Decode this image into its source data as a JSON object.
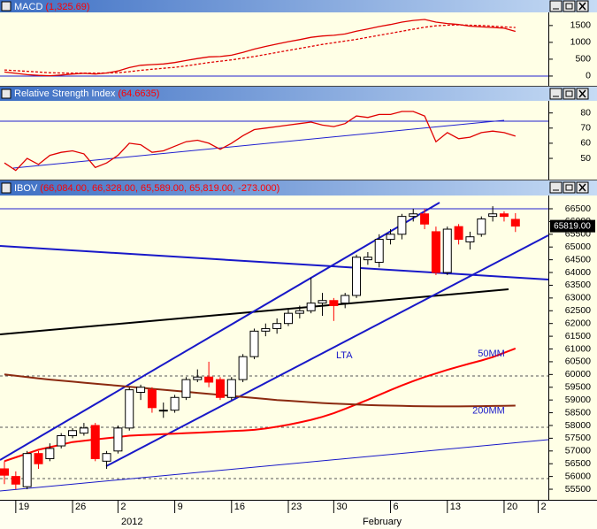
{
  "chart_data": [
    {
      "type": "line",
      "title": "MACD",
      "subtitle": "(1,325.69)",
      "ylim": [
        -290,
        1890
      ],
      "yticks": [
        0,
        500,
        1000,
        1500
      ],
      "series": [
        {
          "color": "#e00000",
          "dash": false,
          "values": [
            120,
            80,
            40,
            20,
            10,
            30,
            60,
            80,
            60,
            90,
            150,
            250,
            320,
            340,
            360,
            400,
            460,
            520,
            570,
            580,
            620,
            700,
            800,
            880,
            950,
            1020,
            1080,
            1150,
            1190,
            1210,
            1250,
            1330,
            1400,
            1470,
            1530,
            1600,
            1650,
            1680,
            1600,
            1560,
            1530,
            1480,
            1460,
            1440,
            1420,
            1325.69,
            null,
            null
          ]
        },
        {
          "color": "#e00000",
          "dash": true,
          "values": [
            180,
            160,
            140,
            120,
            100,
            90,
            85,
            85,
            85,
            90,
            100,
            130,
            170,
            200,
            230,
            260,
            300,
            350,
            400,
            440,
            480,
            530,
            580,
            640,
            700,
            760,
            820,
            880,
            940,
            990,
            1040,
            1090,
            1150,
            1210,
            1270,
            1330,
            1390,
            1450,
            1490,
            1510,
            1520,
            1510,
            1500,
            1480,
            1460,
            1440,
            null,
            null
          ]
        }
      ]
    },
    {
      "type": "line",
      "title": "Relative Strength Index",
      "subtitle": "(64.6635)",
      "ylim": [
        36,
        88
      ],
      "yticks": [
        50,
        60,
        70,
        80
      ],
      "series": [
        {
          "color": "#e00000",
          "dash": false,
          "values": [
            47,
            42,
            50,
            46,
            52,
            54,
            55,
            53,
            44,
            47,
            52,
            60,
            59,
            54,
            55,
            58,
            61,
            62,
            60,
            56,
            60,
            65,
            69,
            70,
            71,
            72,
            73,
            74,
            72,
            71,
            73,
            78,
            77,
            79,
            79,
            81,
            81,
            78,
            61,
            67,
            63,
            64,
            67,
            68,
            67,
            64.6635,
            null,
            null
          ]
        }
      ]
    },
    {
      "type": "candlestick",
      "title": "IBOV",
      "subtitle": "(66,084.00, 66,328.00, 65,589.00, 65,819.00, -273.000)",
      "ylim": [
        55085,
        67020
      ],
      "yticks": [
        55500,
        56000,
        56500,
        57000,
        57500,
        58000,
        58500,
        59000,
        59500,
        60000,
        60500,
        61000,
        61500,
        62000,
        62500,
        63000,
        63500,
        64000,
        64500,
        65000,
        65500,
        66000,
        66500
      ],
      "last_label": "65819.00",
      "categories": [
        null,
        "19",
        null,
        null,
        null,
        null,
        "26",
        null,
        null,
        null,
        "2",
        null,
        null,
        null,
        null,
        "9",
        null,
        null,
        null,
        null,
        "16",
        null,
        null,
        null,
        null,
        "23",
        null,
        null,
        null,
        "30",
        null,
        null,
        null,
        null,
        "6",
        null,
        null,
        null,
        null,
        "13",
        null,
        null,
        null,
        null,
        "20",
        null,
        null,
        "2"
      ],
      "period_labels": [
        "2012",
        "February"
      ],
      "annotation": "LTA",
      "up_color": "#ffffff",
      "down_color": "#ff0000",
      "open": [
        56300,
        56000,
        55600,
        56900,
        56700,
        57200,
        57600,
        57700,
        58000,
        56600,
        57000,
        57900,
        59300,
        59400,
        58600,
        58600,
        59100,
        59800,
        59900,
        59800,
        59100,
        59800,
        60700,
        61700,
        61800,
        62000,
        62400,
        62500,
        62800,
        62900,
        62800,
        63100,
        64500,
        64400,
        65300,
        65500,
        66200,
        66300,
        65600,
        64000,
        65800,
        65200,
        65500,
        66200,
        66300,
        66084,
        null,
        null
      ],
      "high": [
        56600,
        56200,
        57000,
        57000,
        57300,
        57700,
        57900,
        58100,
        58100,
        57000,
        58000,
        59500,
        59600,
        59500,
        58900,
        59200,
        59900,
        60200,
        60500,
        59900,
        59900,
        60800,
        61800,
        62000,
        62200,
        62600,
        62700,
        63800,
        63200,
        63000,
        63200,
        64700,
        64800,
        65500,
        65700,
        66300,
        66500,
        66500,
        65800,
        65800,
        65900,
        65600,
        66200,
        66600,
        66400,
        66328,
        null,
        null
      ],
      "low": [
        55700,
        55500,
        55500,
        56300,
        56600,
        57100,
        57500,
        57600,
        56600,
        56300,
        56900,
        57800,
        59000,
        58500,
        58300,
        58500,
        59000,
        59700,
        59500,
        59000,
        59000,
        59700,
        60600,
        61500,
        61600,
        61900,
        62200,
        62400,
        62300,
        62100,
        62600,
        63000,
        64300,
        64200,
        65100,
        65300,
        66000,
        65700,
        63900,
        63900,
        65100,
        64900,
        65400,
        66000,
        66000,
        65589,
        null,
        null
      ],
      "close": [
        56050,
        55700,
        56900,
        56500,
        57100,
        57600,
        57800,
        57900,
        56700,
        56900,
        57900,
        59400,
        59500,
        58700,
        58600,
        59100,
        59800,
        59900,
        59700,
        59100,
        59800,
        60700,
        61700,
        61800,
        62000,
        62400,
        62500,
        62800,
        62900,
        62700,
        63100,
        64600,
        64600,
        65300,
        65500,
        66200,
        66300,
        65900,
        64000,
        65700,
        65300,
        65400,
        66100,
        66300,
        66200,
        65819,
        null,
        null
      ],
      "series": [
        {
          "name": "50MM",
          "color": "#ff0000",
          "values": [
            56600,
            56750,
            56900,
            57050,
            57150,
            57250,
            57350,
            57400,
            57450,
            57500,
            57550,
            57600,
            57620,
            57640,
            57660,
            57680,
            57700,
            57720,
            57740,
            57760,
            57780,
            57800,
            57830,
            57880,
            57950,
            58030,
            58120,
            58220,
            58340,
            58480,
            58650,
            58830,
            59010,
            59200,
            59390,
            59570,
            59740,
            59900,
            60040,
            60180,
            60310,
            60430,
            60550,
            60680,
            60850,
            61020,
            null,
            null
          ]
        },
        {
          "name": "200MM",
          "color": "#8b2a10",
          "values": [
            60000,
            59950,
            59900,
            59850,
            59800,
            59760,
            59720,
            59680,
            59640,
            59600,
            59560,
            59520,
            59480,
            59440,
            59400,
            59360,
            59320,
            59280,
            59240,
            59200,
            59160,
            59120,
            59080,
            59040,
            59000,
            58970,
            58940,
            58910,
            58880,
            58860,
            58840,
            58820,
            58800,
            58790,
            58780,
            58770,
            58760,
            58755,
            58750,
            58750,
            58750,
            58755,
            58760,
            58765,
            58770,
            58780,
            null,
            null
          ]
        }
      ]
    }
  ]
}
